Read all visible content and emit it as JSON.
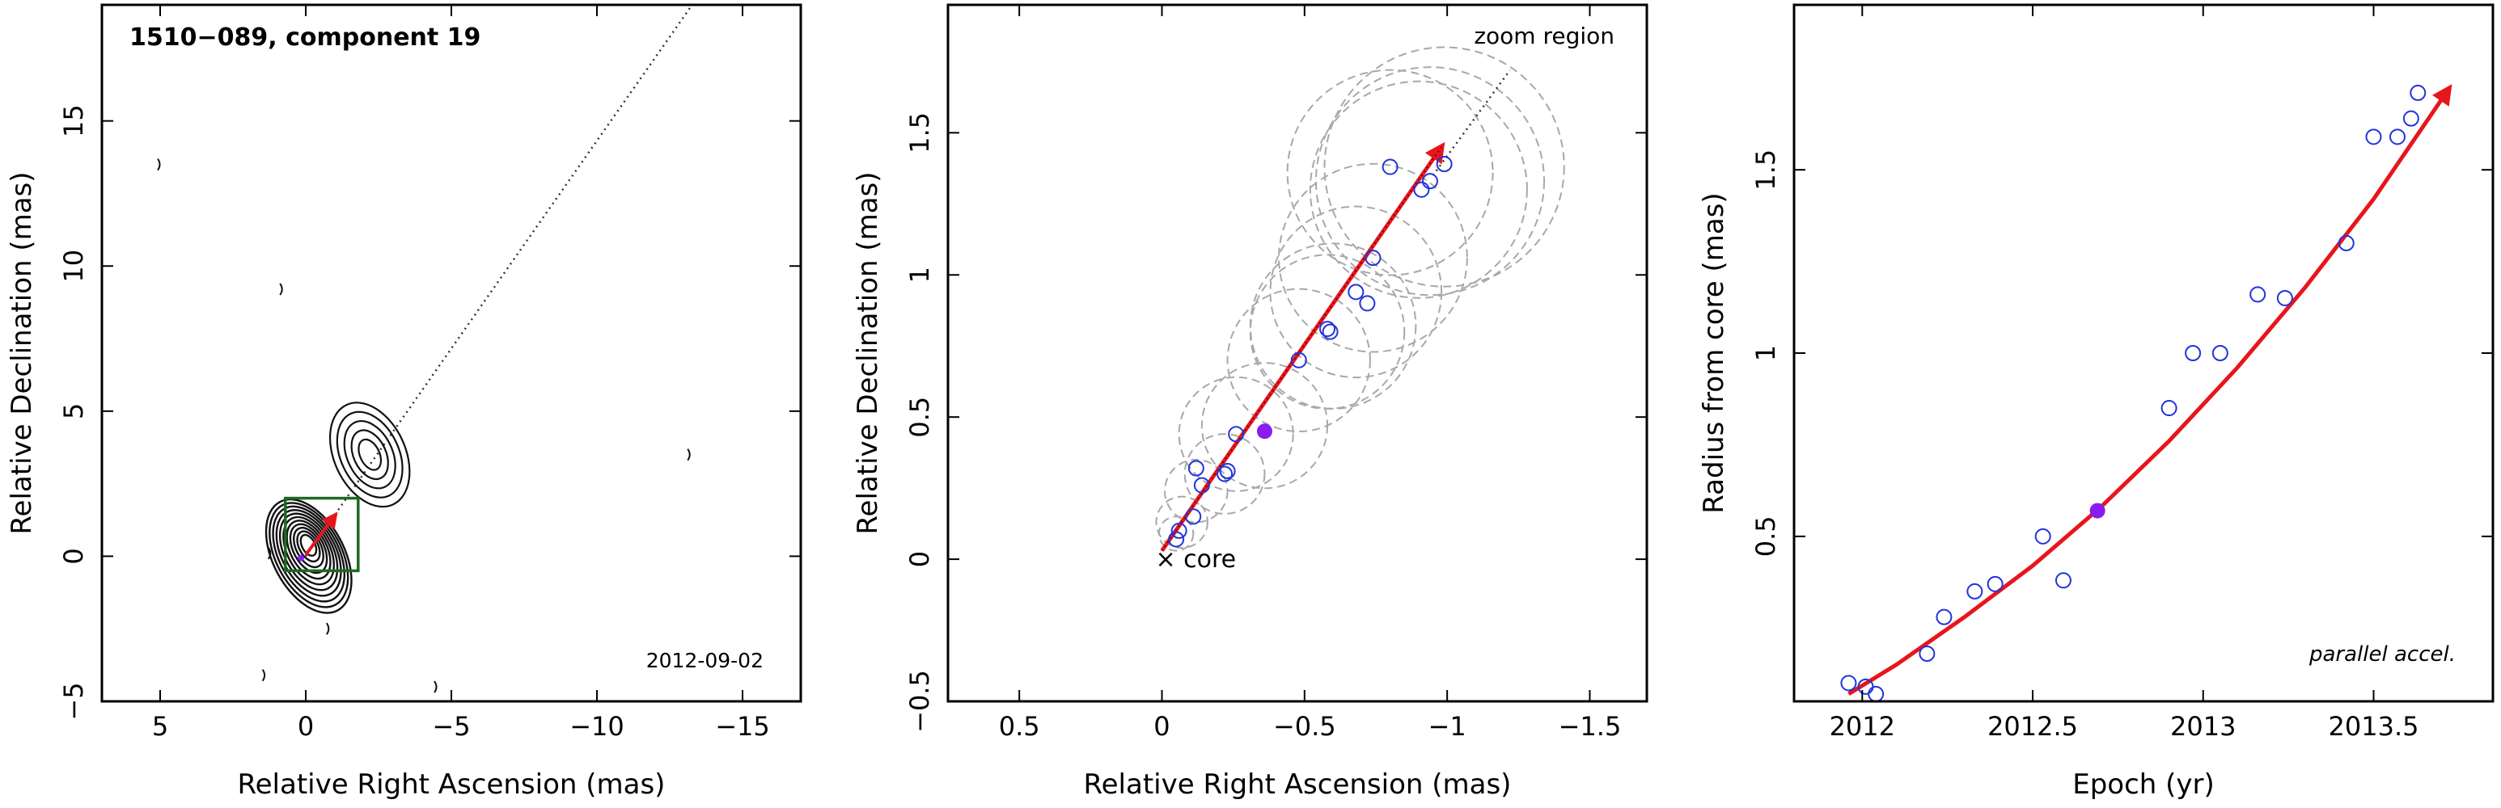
{
  "chart_data": [
    {
      "type": "contour",
      "panel": "left",
      "title": "1510−089, component 19",
      "date_label": "2012-09-02",
      "xlabel": "Relative Right Ascension (mas)",
      "ylabel": "Relative Declination (mas)",
      "xlim": [
        7,
        -17
      ],
      "ylim": [
        -5,
        19
      ],
      "xticks": [
        5,
        0,
        -5,
        -10,
        -15
      ],
      "xtick_labels": [
        "5",
        "0",
        "−5",
        "−10",
        "−15"
      ],
      "yticks": [
        -5,
        0,
        5,
        10,
        15
      ],
      "ytick_labels": [
        "−5",
        "0",
        "5",
        "10",
        "15"
      ],
      "trajectory_extension": {
        "x": [
          0.0,
          -13.2
        ],
        "y": [
          0.0,
          18.9
        ]
      },
      "zoom_box": {
        "x": [
          0.7,
          -1.8
        ],
        "y": [
          -0.5,
          2.0
        ]
      },
      "fitted_path": {
        "x": [
          0.0,
          -1.0
        ],
        "y": [
          0.05,
          1.4
        ]
      },
      "core_blob": {
        "x": 0.0,
        "y": 0.2
      },
      "outer_blob": {
        "x": -2.2,
        "y": 3.5
      },
      "noise_spots": [
        {
          "x": 5.0,
          "y": 13.5
        },
        {
          "x": 0.8,
          "y": 9.2
        },
        {
          "x": -13.2,
          "y": 3.5
        },
        {
          "x": 1.4,
          "y": -4.1
        },
        {
          "x": -4.5,
          "y": -4.5
        },
        {
          "x": -0.8,
          "y": -2.5
        },
        {
          "x": 1.2,
          "y": 0.1
        }
      ]
    },
    {
      "type": "scatter",
      "panel": "middle",
      "xlabel": "Relative Right Ascension (mas)",
      "ylabel": "Relative Declination (mas)",
      "xlim": [
        0.75,
        -1.7
      ],
      "ylim": [
        -0.5,
        1.95
      ],
      "xticks": [
        0.5,
        0,
        -0.5,
        -1,
        -1.5
      ],
      "xtick_labels": [
        "0.5",
        "0",
        "−0.5",
        "−1",
        "−1.5"
      ],
      "yticks": [
        -0.5,
        0,
        0.5,
        1,
        1.5
      ],
      "ytick_labels": [
        "−0.5",
        "0",
        "0.5",
        "1",
        "1.5"
      ],
      "annotations": {
        "zoom": "zoom region",
        "core": "× core"
      },
      "points": {
        "x": [
          -0.05,
          -0.06,
          -0.11,
          -0.14,
          -0.12,
          -0.22,
          -0.23,
          -0.26,
          -0.48,
          -0.58,
          -0.59,
          -0.72,
          -0.74,
          -0.68,
          -0.8,
          -0.91,
          -0.94,
          -0.99
        ],
        "y": [
          0.07,
          0.1,
          0.15,
          0.26,
          0.32,
          0.3,
          0.31,
          0.44,
          0.7,
          0.81,
          0.8,
          0.9,
          1.06,
          0.94,
          1.38,
          1.3,
          1.33,
          1.39
        ]
      },
      "highlight_point": {
        "x": -0.36,
        "y": 0.45
      },
      "component_circles": [
        {
          "x": -0.05,
          "y": 0.09,
          "r": 0.06
        },
        {
          "x": -0.07,
          "y": 0.13,
          "r": 0.09
        },
        {
          "x": -0.12,
          "y": 0.24,
          "r": 0.11
        },
        {
          "x": -0.22,
          "y": 0.3,
          "r": 0.14
        },
        {
          "x": -0.26,
          "y": 0.44,
          "r": 0.2
        },
        {
          "x": -0.36,
          "y": 0.47,
          "r": 0.22
        },
        {
          "x": -0.48,
          "y": 0.7,
          "r": 0.25
        },
        {
          "x": -0.58,
          "y": 0.8,
          "r": 0.27
        },
        {
          "x": -0.6,
          "y": 0.82,
          "r": 0.29
        },
        {
          "x": -0.68,
          "y": 0.94,
          "r": 0.3
        },
        {
          "x": -0.74,
          "y": 1.06,
          "r": 0.33
        },
        {
          "x": -0.8,
          "y": 1.36,
          "r": 0.36
        },
        {
          "x": -0.9,
          "y": 1.3,
          "r": 0.38
        },
        {
          "x": -0.94,
          "y": 1.33,
          "r": 0.4
        },
        {
          "x": -0.99,
          "y": 1.38,
          "r": 0.42
        }
      ],
      "trajectory_extension": {
        "x": [
          -0.95,
          -1.22
        ],
        "y": [
          1.35,
          1.72
        ]
      },
      "fitted_path": {
        "x": [
          0.0,
          -0.98
        ],
        "y": [
          0.03,
          1.45
        ]
      }
    },
    {
      "type": "scatter",
      "panel": "right",
      "xlabel": "Epoch (yr)",
      "ylabel": "Radius from core (mas)",
      "xlim": [
        2011.8,
        2013.85
      ],
      "ylim": [
        0.05,
        1.95
      ],
      "xticks": [
        2012,
        2012.5,
        2013,
        2013.5
      ],
      "xtick_labels": [
        "2012",
        "2012.5",
        "2013",
        "2013.5"
      ],
      "yticks": [
        0.5,
        1,
        1.5
      ],
      "ytick_labels": [
        "0.5",
        "1",
        "1.5"
      ],
      "annotation": "parallel accel.",
      "points": {
        "x": [
          2011.96,
          2012.01,
          2012.04,
          2012.19,
          2012.24,
          2012.33,
          2012.39,
          2012.53,
          2012.59,
          2012.9,
          2012.97,
          2013.05,
          2013.16,
          2013.24,
          2013.42,
          2013.5,
          2013.57,
          2013.61,
          2013.63
        ],
        "y": [
          0.1,
          0.09,
          0.07,
          0.18,
          0.28,
          0.35,
          0.37,
          0.5,
          0.38,
          0.85,
          1.0,
          1.0,
          1.16,
          1.15,
          1.3,
          1.59,
          1.59,
          1.64,
          1.71
        ]
      },
      "highlight_point": {
        "x": 2012.69,
        "y": 0.57
      },
      "fit_curve": {
        "x": [
          2011.96,
          2012.1,
          2012.3,
          2012.5,
          2012.7,
          2012.9,
          2013.1,
          2013.3,
          2013.5,
          2013.72
        ],
        "y": [
          0.07,
          0.15,
          0.28,
          0.42,
          0.58,
          0.76,
          0.96,
          1.18,
          1.42,
          1.72
        ]
      }
    }
  ],
  "colors": {
    "axes": "#000000",
    "fit": "#e8151c",
    "points": "#2233dd",
    "highlight": "#8a1cf0",
    "circles": "#a8a8a8",
    "contours": "#111111",
    "zoom_box": "#1b6b22",
    "dotted": "#333333"
  }
}
